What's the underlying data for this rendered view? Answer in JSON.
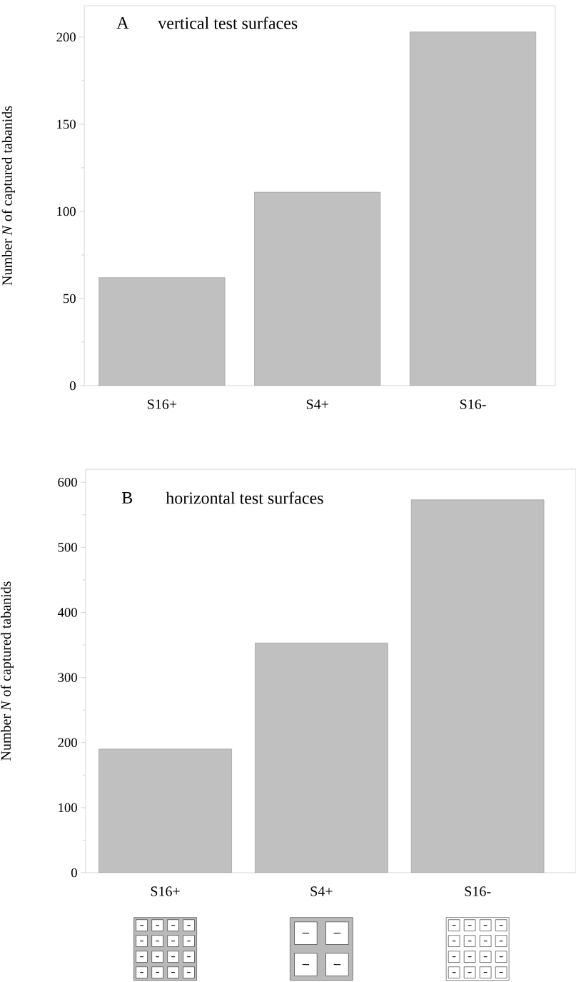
{
  "chart_data": [
    {
      "type": "bar",
      "title": "vertical test surfaces",
      "annotations": [
        "A"
      ],
      "ylabel": "Number *N* of captured tabanids",
      "categories": [
        "S16+",
        "S4+",
        "S16-"
      ],
      "values": [
        62,
        111,
        203
      ],
      "color": "#c0c0c0",
      "ylim": [
        0,
        218
      ],
      "yticks": [
        0,
        50,
        100,
        150,
        200
      ],
      "grid": false
    },
    {
      "type": "bar",
      "title": "horizontal test surfaces",
      "annotations": [
        "B"
      ],
      "ylabel": "Number *N* of captured tabanids",
      "categories": [
        "S16+",
        "S4+",
        "S16-"
      ],
      "values": [
        190,
        353,
        573
      ],
      "color": "#c0c0c0",
      "ylim": [
        0,
        620
      ],
      "yticks": [
        0,
        100,
        200,
        300,
        400,
        500,
        600
      ],
      "grid": false
    }
  ]
}
